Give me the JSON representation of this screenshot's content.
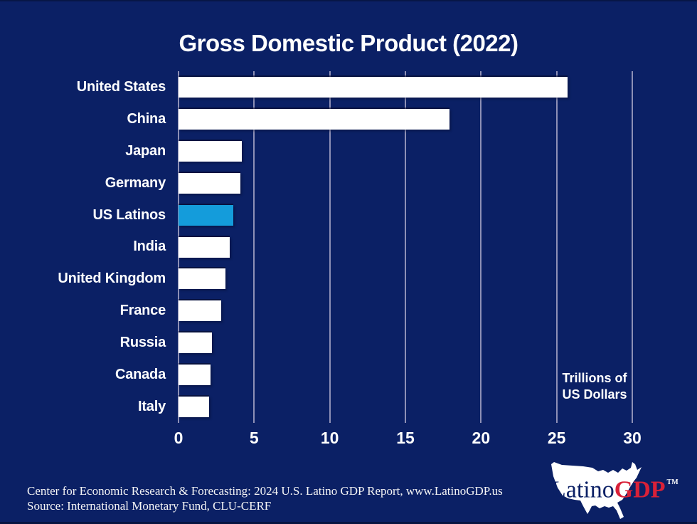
{
  "title": "Gross Domestic Product (2022)",
  "chart_data": {
    "type": "bar",
    "orientation": "horizontal",
    "title": "Gross Domestic Product (2022)",
    "categories": [
      "United States",
      "China",
      "Japan",
      "Germany",
      "US Latinos",
      "India",
      "United Kingdom",
      "France",
      "Russia",
      "Canada",
      "Italy"
    ],
    "values": [
      25.7,
      17.9,
      4.2,
      4.1,
      3.6,
      3.4,
      3.1,
      2.8,
      2.2,
      2.1,
      2.0
    ],
    "highlight_category": "US Latinos",
    "xlabel": "Trillions of US Dollars",
    "xlim": [
      0,
      30
    ],
    "xticks": [
      0,
      5,
      10,
      15,
      20,
      25,
      30
    ],
    "grid": true,
    "legend": false
  },
  "annotation": {
    "line1": "Trillions of",
    "line2": "US Dollars"
  },
  "footer": {
    "line1": "Center for Economic Research & Forecasting: 2024 U.S. Latino GDP Report, www.LatinoGDP.us",
    "line2": "Source: International Monetary Fund, CLU-CERF"
  },
  "logo": {
    "text_latino": "Latino",
    "text_gdp": "GDP",
    "trademark": "TM"
  },
  "colors": {
    "background": "#0b2065",
    "bar": "#ffffff",
    "highlight": "#149cdb",
    "gridline": "#a6a5c4",
    "logo_red": "#d92138",
    "text": "#ffffff"
  }
}
